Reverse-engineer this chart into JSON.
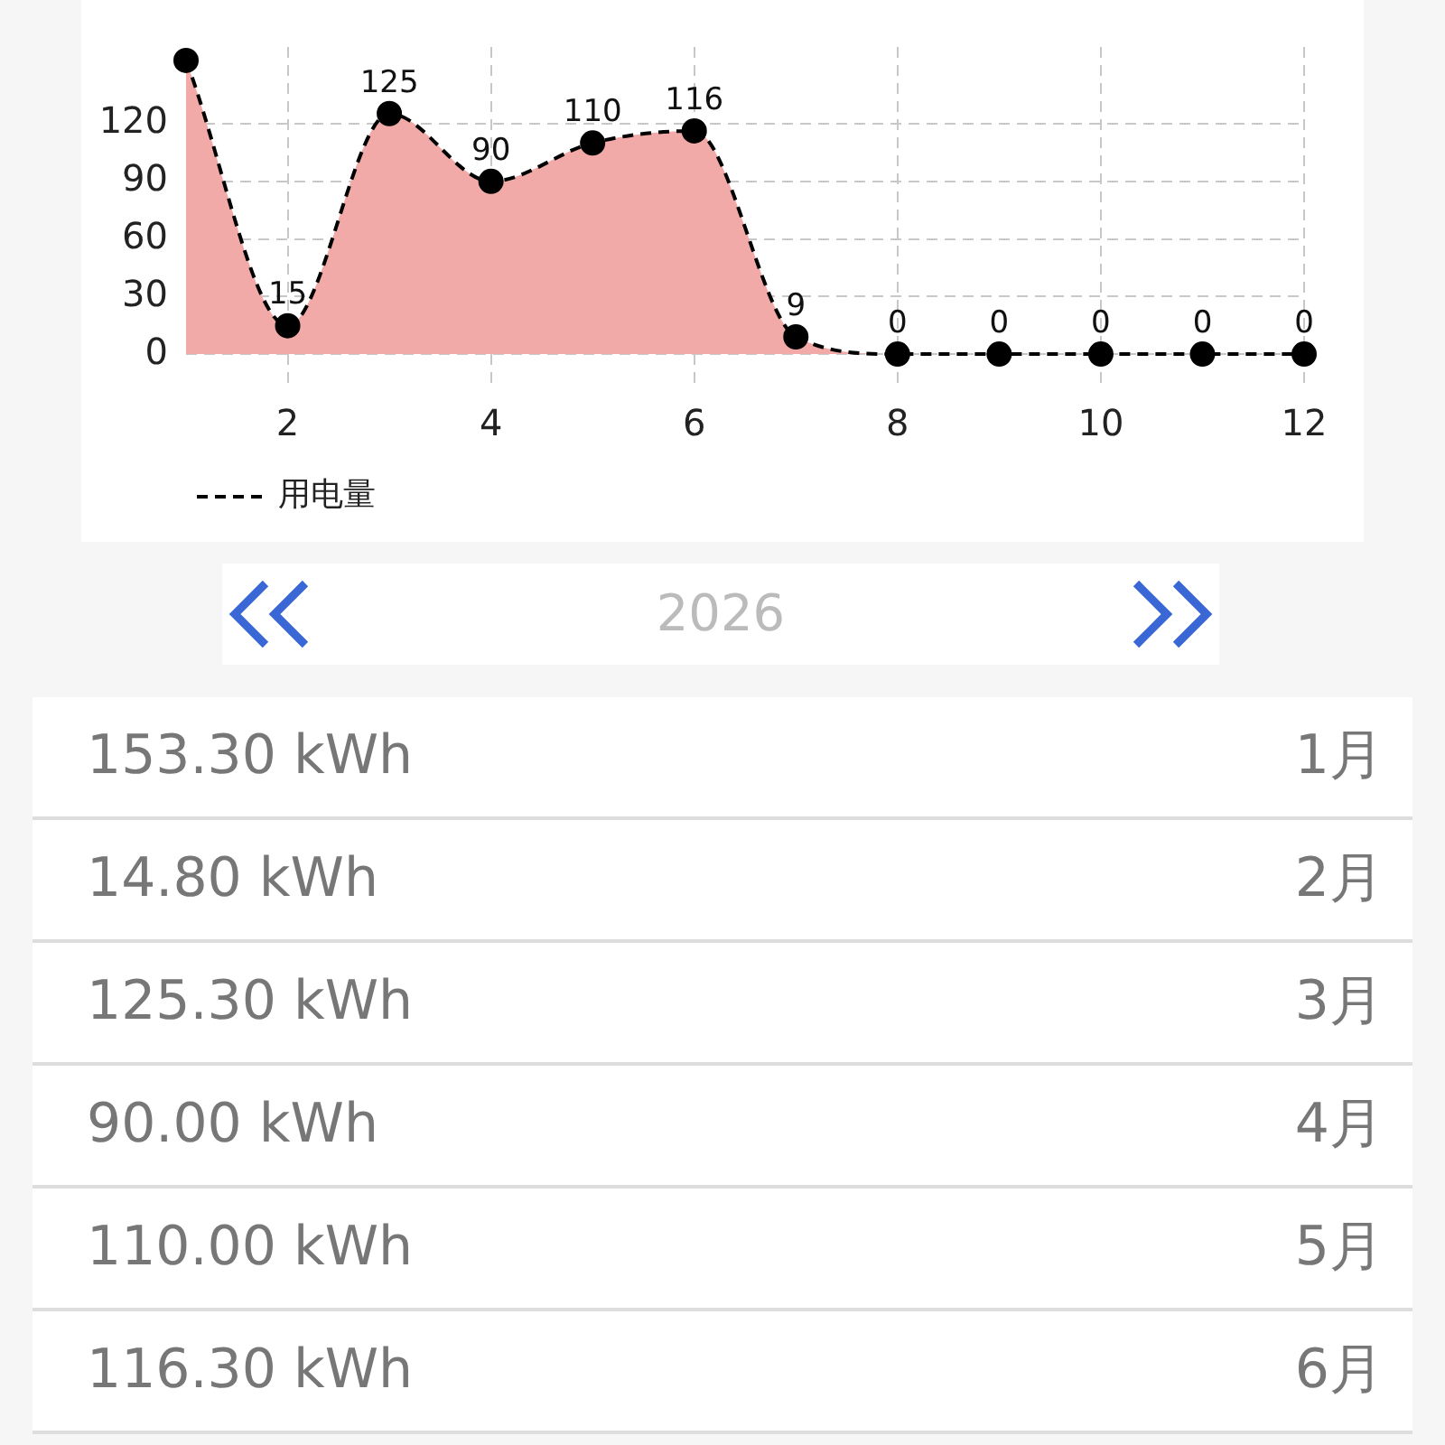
{
  "chart_data": {
    "type": "area",
    "x": [
      1,
      2,
      3,
      4,
      5,
      6,
      7,
      8,
      9,
      10,
      11,
      12
    ],
    "xlim": [
      1,
      12
    ],
    "xticks": [
      2,
      4,
      6,
      8,
      10,
      12
    ],
    "ylim": [
      -15,
      160
    ],
    "yticks": [
      0,
      30,
      60,
      90,
      120
    ],
    "grid": true,
    "legend": "bottom left",
    "marker": "circle",
    "line_style": "dashed",
    "series": [
      {
        "name": "用电量",
        "color": "#f1aaa8",
        "values": [
          153,
          14.8,
          125.3,
          90,
          110,
          116.3,
          9,
          0,
          0,
          0,
          0,
          0
        ],
        "value_labels": [
          null,
          "15",
          "125",
          "90",
          "110",
          "116",
          "9",
          "0",
          "0",
          "0",
          "0",
          "0"
        ]
      }
    ],
    "annotations": [
      "2026",
      "153.30 kWh",
      "1月",
      "14.80 kWh",
      "2月",
      "125.30 kWh",
      "3月",
      "90.00 kWh",
      "4月",
      "110.00 kWh",
      "5月",
      "116.30 kWh",
      "6月"
    ]
  }
}
